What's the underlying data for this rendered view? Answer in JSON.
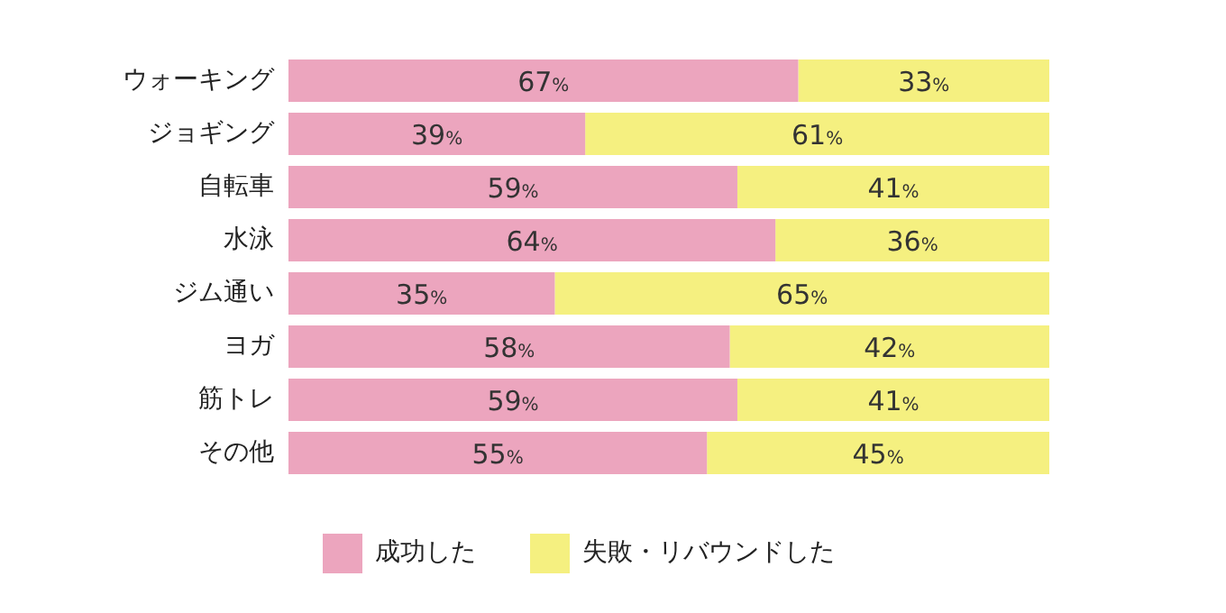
{
  "chart_data": {
    "type": "bar",
    "orientation": "horizontal",
    "stacked": true,
    "legend": "bottom",
    "grid": false,
    "tick_labels": "y",
    "categories": [
      "ウォーキング",
      "ジョギング",
      "自転車",
      "水泳",
      "ジム通い",
      "ヨガ",
      "筋トレ",
      "その他"
    ],
    "series": [
      {
        "name": "成功した",
        "color": "#eca5be",
        "values": [
          67,
          39,
          59,
          64,
          35,
          58,
          59,
          55
        ],
        "value_labels": [
          "67%",
          "39%",
          "59%",
          "64%",
          "35%",
          "58%",
          "59%",
          "55%"
        ]
      },
      {
        "name": "失敗・リバウンドした",
        "color": "#f5f080",
        "values": [
          33,
          61,
          41,
          36,
          65,
          42,
          41,
          45
        ],
        "value_labels": [
          "33%",
          "61%",
          "41%",
          "36%",
          "65%",
          "42%",
          "41%",
          "45%"
        ]
      }
    ]
  }
}
